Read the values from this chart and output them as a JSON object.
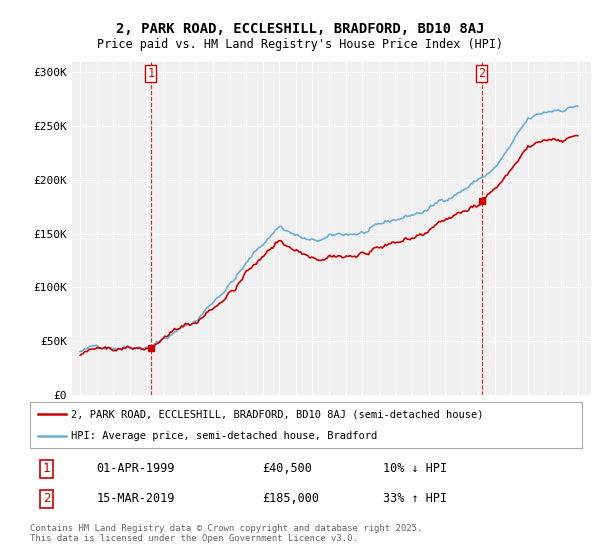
{
  "title": "2, PARK ROAD, ECCLESHILL, BRADFORD, BD10 8AJ",
  "subtitle": "Price paid vs. HM Land Registry's House Price Index (HPI)",
  "sale1_date": "01-APR-1999",
  "sale1_price": 40500,
  "sale1_pct": "10%",
  "sale1_direction": "↓",
  "sale2_date": "15-MAR-2019",
  "sale2_price": 185000,
  "sale2_pct": "33%",
  "sale2_direction": "↑",
  "legend_label1": "2, PARK ROAD, ECCLESHILL, BRADFORD, BD10 8AJ (semi-detached house)",
  "legend_label2": "HPI: Average price, semi-detached house, Bradford",
  "footer": "Contains HM Land Registry data © Crown copyright and database right 2025.\nThis data is licensed under the Open Government Licence v3.0.",
  "hpi_color": "#6baed6",
  "price_color": "#cc0000",
  "marker_color": "#cc0000",
  "sale1_marker_x": 1999.25,
  "sale2_marker_x": 2019.2,
  "ylim_min": 0,
  "ylim_max": 310000,
  "xlim_min": 1994.5,
  "xlim_max": 2025.8,
  "background_color": "#f0f0f0"
}
